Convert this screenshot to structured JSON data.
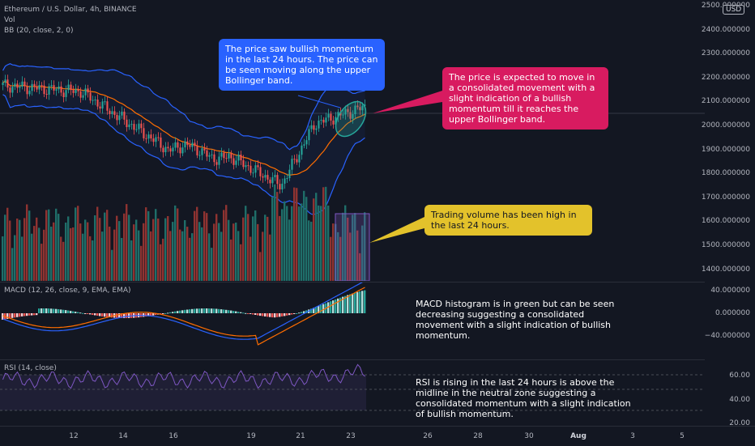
{
  "legend": {
    "symbol": "Ethereum / U.S. Dollar, 4h, BINANCE",
    "vol": "Vol",
    "bb": "BB (20, close, 2, 0)",
    "macd": "MACD (12, 26, close, 9, EMA, EMA)",
    "rsi": "RSI (14, close)"
  },
  "price_axis": {
    "currency_badge": "USD",
    "ticks": [
      "2500.000000",
      "2400.000000",
      "2300.000000",
      "2200.000000",
      "2100.000000",
      "2000.000000",
      "1900.000000",
      "1800.000000",
      "1700.000000",
      "1600.000000",
      "1500.000000",
      "1400.000000"
    ]
  },
  "macd_axis": {
    "ticks": [
      "40.000000",
      "0.000000",
      "−40.000000"
    ]
  },
  "rsi_axis": {
    "ticks": [
      "60.00",
      "40.00",
      "20.00"
    ]
  },
  "time_axis": {
    "labels": [
      {
        "text": "12",
        "bold": false
      },
      {
        "text": "14",
        "bold": false
      },
      {
        "text": "16",
        "bold": false
      },
      {
        "text": "19",
        "bold": false
      },
      {
        "text": "21",
        "bold": false
      },
      {
        "text": "23",
        "bold": false
      },
      {
        "text": "26",
        "bold": false
      },
      {
        "text": "28",
        "bold": false
      },
      {
        "text": "30",
        "bold": false
      },
      {
        "text": "Aug",
        "bold": true
      },
      {
        "text": "3",
        "bold": false
      },
      {
        "text": "5",
        "bold": false
      }
    ]
  },
  "annotations": {
    "bollinger": "The price saw bullish momentum in the last 24 hours. The price can be seen moving along the upper Bollinger band.",
    "consolidated": "The price is expected to move in a consolidated movement with a slight indication of a bullish momentum till it reaches the upper Bollinger band.",
    "volume": "Trading volume has been high in the last 24 hours.",
    "macd": "MACD histogram is in green but can be seen decreasing suggesting a consolidated movement with a slight indication of bullish momentum.",
    "rsi": "RSI is rising in the last 24 hours is above the midline in the neutral zone suggesting a consolidated momentum with a slight indication of bullish momentum."
  },
  "colors": {
    "background": "#131722",
    "bull": "#26a69a",
    "bear": "#ef5350",
    "vol_bull": "#1f6e69",
    "vol_bear": "#8f3331",
    "bb_band": "#2962ff",
    "bb_basis": "#ff6d00",
    "rsi_line": "#7e57c2"
  }
}
